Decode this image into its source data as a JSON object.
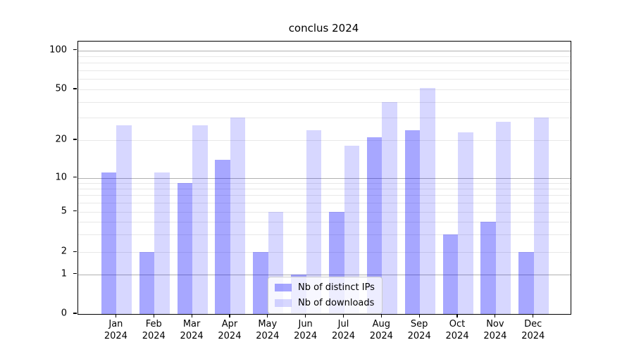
{
  "title": "conclus 2024",
  "legend": {
    "items": [
      {
        "label": "Nb of distinct IPs",
        "color": "rgba(0,0,255,0.345)"
      },
      {
        "label": "Nb of downloads",
        "color": "rgba(0,0,255,0.155)"
      }
    ]
  },
  "y_axis": {
    "tick_labels": [
      "100",
      "50",
      "20",
      "10",
      "5",
      "2",
      "1",
      "0"
    ],
    "tick_values": [
      100,
      50,
      20,
      10,
      5,
      2,
      1,
      0
    ]
  },
  "x_axis": {
    "months": [
      "Jan",
      "Feb",
      "Mar",
      "Apr",
      "May",
      "Jun",
      "Jul",
      "Aug",
      "Sep",
      "Oct",
      "Nov",
      "Dec"
    ],
    "year": "2024"
  },
  "colors": {
    "bar_distinct_ips": "rgba(0,0,255,0.345)",
    "bar_downloads": "rgba(0,0,255,0.155)",
    "grid_major": "#b0b0b0",
    "grid_minor": "#e8e8e8",
    "axis": "#000000"
  },
  "chart_data": {
    "type": "bar",
    "title": "conclus 2024",
    "categories": [
      "Jan 2024",
      "Feb 2024",
      "Mar 2024",
      "Apr 2024",
      "May 2024",
      "Jun 2024",
      "Jul 2024",
      "Aug 2024",
      "Sep 2024",
      "Oct 2024",
      "Nov 2024",
      "Dec 2024"
    ],
    "series": [
      {
        "name": "Nb of distinct IPs",
        "values": [
          11,
          2,
          9,
          14,
          2,
          1,
          5,
          21,
          24,
          3,
          4,
          2
        ]
      },
      {
        "name": "Nb of downloads",
        "values": [
          26,
          11,
          26,
          30,
          5,
          24,
          18,
          40,
          51,
          23,
          28,
          30
        ]
      }
    ],
    "xlabel": "",
    "ylabel": "",
    "y_scale": "symlog",
    "y_ticks": [
      0,
      1,
      2,
      5,
      10,
      20,
      50,
      100
    ],
    "y_minor_gridlines": [
      3,
      4,
      6,
      7,
      8,
      9,
      30,
      40,
      60,
      70,
      80,
      90
    ],
    "y_major_dark_gridlines": [
      1,
      10,
      100
    ],
    "ylim": [
      0,
      110
    ],
    "grid": "horizontal",
    "legend_position": "lower center"
  }
}
